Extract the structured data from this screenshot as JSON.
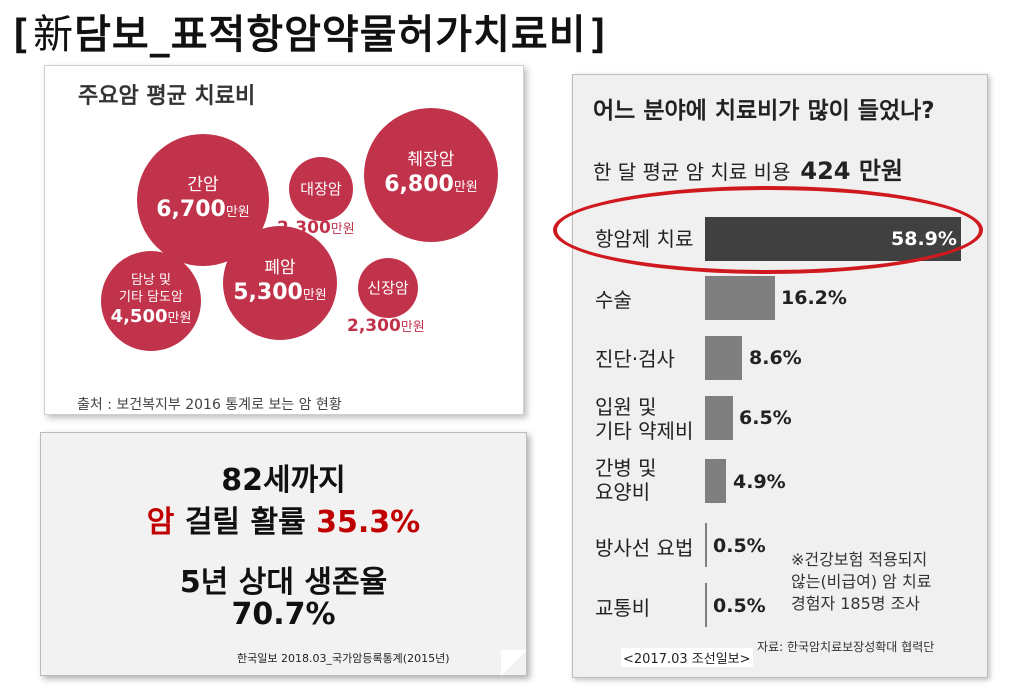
{
  "title": {
    "open": "[",
    "hanja": "新",
    "text": "담보_표적항암약물허가치료비",
    "close": "]"
  },
  "panel1": {
    "title": "주요암 평균 치료비",
    "unit": "만원",
    "source": "출처 : 보건복지부 2016 통계로 보는 암 현황"
  },
  "chart_data": [
    {
      "type": "bubble",
      "title": "주요암 평균 치료비",
      "unit": "만원",
      "categories": [
        "간암",
        "대장암",
        "췌장암",
        "담낭 및 기타 담도암",
        "폐암",
        "신장암"
      ],
      "labels": [
        "간암",
        "대장암",
        "췌장암",
        "담낭 및\n기타 담도암",
        "폐암",
        "신장암"
      ],
      "values": [
        6700,
        2300,
        6800,
        4500,
        5300,
        2300
      ],
      "value_labels": [
        "6,700",
        "2,300",
        "6,800",
        "4,500",
        "5,300",
        "2,300"
      ],
      "source": "출처 : 보건복지부 2016 통계로 보는 암 현황"
    },
    {
      "type": "bar",
      "orientation": "horizontal",
      "title": "어느 분야에 치료비가 많이 들었나?",
      "subtitle": "한 달 평균 암 치료 비용",
      "subtitle_value": "424 만원",
      "categories": [
        "항암제 치료",
        "수술",
        "진단·검사",
        "입원 및\n기타 약제비",
        "간병 및\n요양비",
        "방사선 요법",
        "교통비"
      ],
      "values": [
        58.9,
        16.2,
        8.6,
        6.5,
        4.9,
        0.5,
        0.5
      ],
      "value_labels": [
        "58.9%",
        "16.2%",
        "8.6%",
        "6.5%",
        "4.9%",
        "0.5%",
        "0.5%"
      ],
      "highlight": "항암제 치료",
      "unit": "%"
    }
  ],
  "panel2": {
    "line1": "82세까지",
    "line2a": "암",
    "line2b": " 걸릴 활률 ",
    "line2c": "35.3%",
    "line3": "5년 상대 생존율",
    "line4": "70.7%",
    "source": "한국일보 2018.03_국가암등록통계(2015년)"
  },
  "panel3": {
    "title": "어느 분야에 치료비가 많이 들었나?",
    "sub_label": "한 달 평균 암 치료 비용",
    "sub_value": "424 만원",
    "note1": "※건강보험 적용되지",
    "note2": "않는(비급여) 암 치료",
    "note3": "경험자 185명 조사",
    "source": "자료: 한국암치료보장성확대 협력단"
  },
  "caption": "<2017.03 조선일보>",
  "colors": {
    "bubble": "#c1334b",
    "highlight": "#d0191e",
    "bar": "#7f7f7f",
    "bar_top": "#404040",
    "navy": "#1f3a93"
  }
}
